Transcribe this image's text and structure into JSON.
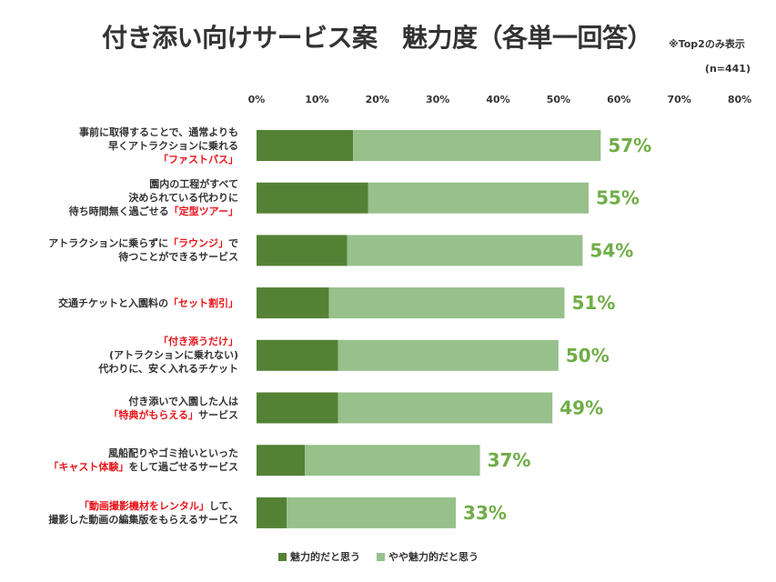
{
  "title": "付き添い向けサービス案　魅力度（各単一回答）",
  "note": "※Top2のみ表示",
  "sample": "(n=441)",
  "colors": {
    "dark": "#548235",
    "light": "#97c08b",
    "pct": "#70ad47",
    "highlight": "#e8141a"
  },
  "chart_data": {
    "type": "bar",
    "orientation": "horizontal",
    "stacked": true,
    "xlim": [
      0,
      80
    ],
    "x_ticks": [
      "0%",
      "10%",
      "20%",
      "30%",
      "40%",
      "50%",
      "60%",
      "70%",
      "80%"
    ],
    "categories": [
      {
        "lines": [
          [
            {
              "t": "事前に取得することで、通常よりも"
            }
          ],
          [
            {
              "t": "早くアトラクションに乗れる"
            }
          ],
          [
            {
              "t": "「ファストパス」",
              "hl": true
            }
          ]
        ]
      },
      {
        "lines": [
          [
            {
              "t": "園内の工程がすべて"
            }
          ],
          [
            {
              "t": "決められている代わりに"
            }
          ],
          [
            {
              "t": "待ち時間無く過ごせる"
            },
            {
              "t": "「定型ツアー」",
              "hl": true
            }
          ]
        ]
      },
      {
        "lines": [
          [
            {
              "t": "アトラクションに乗らずに"
            },
            {
              "t": "「ラウンジ」",
              "hl": true
            },
            {
              "t": "で"
            }
          ],
          [
            {
              "t": "待つことができるサービス"
            }
          ]
        ]
      },
      {
        "lines": [
          [
            {
              "t": "交通チケットと入園料の"
            },
            {
              "t": "「セット割引」",
              "hl": true
            }
          ]
        ]
      },
      {
        "lines": [
          [
            {
              "t": "「付き添うだけ」",
              "hl": true
            }
          ],
          [
            {
              "t": "(アトラクションに乗れない)"
            }
          ],
          [
            {
              "t": "代わりに、安く入れるチケット"
            }
          ]
        ]
      },
      {
        "lines": [
          [
            {
              "t": "付き添いで入園した人は"
            }
          ],
          [
            {
              "t": "「特典がもらえる」",
              "hl": true
            },
            {
              "t": "サービス"
            }
          ]
        ]
      },
      {
        "lines": [
          [
            {
              "t": "風船配りやゴミ拾いといった"
            }
          ],
          [
            {
              "t": "「キャスト体験」",
              "hl": true
            },
            {
              "t": "をして過ごせるサービス"
            }
          ]
        ]
      },
      {
        "lines": [
          [
            {
              "t": "「動画撮影機材をレンタル」",
              "hl": true
            },
            {
              "t": "して、"
            }
          ],
          [
            {
              "t": "撮影した動画の編集版をもらえるサービス"
            }
          ]
        ]
      }
    ],
    "series": [
      {
        "name": "魅力的だと思う",
        "values": [
          16,
          18.5,
          15,
          12,
          13.5,
          13.5,
          8,
          5
        ]
      },
      {
        "name": "やや魅力的だと思う",
        "values": [
          41,
          36.5,
          39,
          39,
          36.5,
          35.5,
          29,
          28
        ]
      }
    ],
    "totals": [
      57,
      55,
      54,
      51,
      50,
      49,
      37,
      33
    ],
    "total_labels": [
      "57%",
      "55%",
      "54%",
      "51%",
      "50%",
      "49%",
      "37%",
      "33%"
    ],
    "legend_position": "bottom",
    "grid": false
  }
}
